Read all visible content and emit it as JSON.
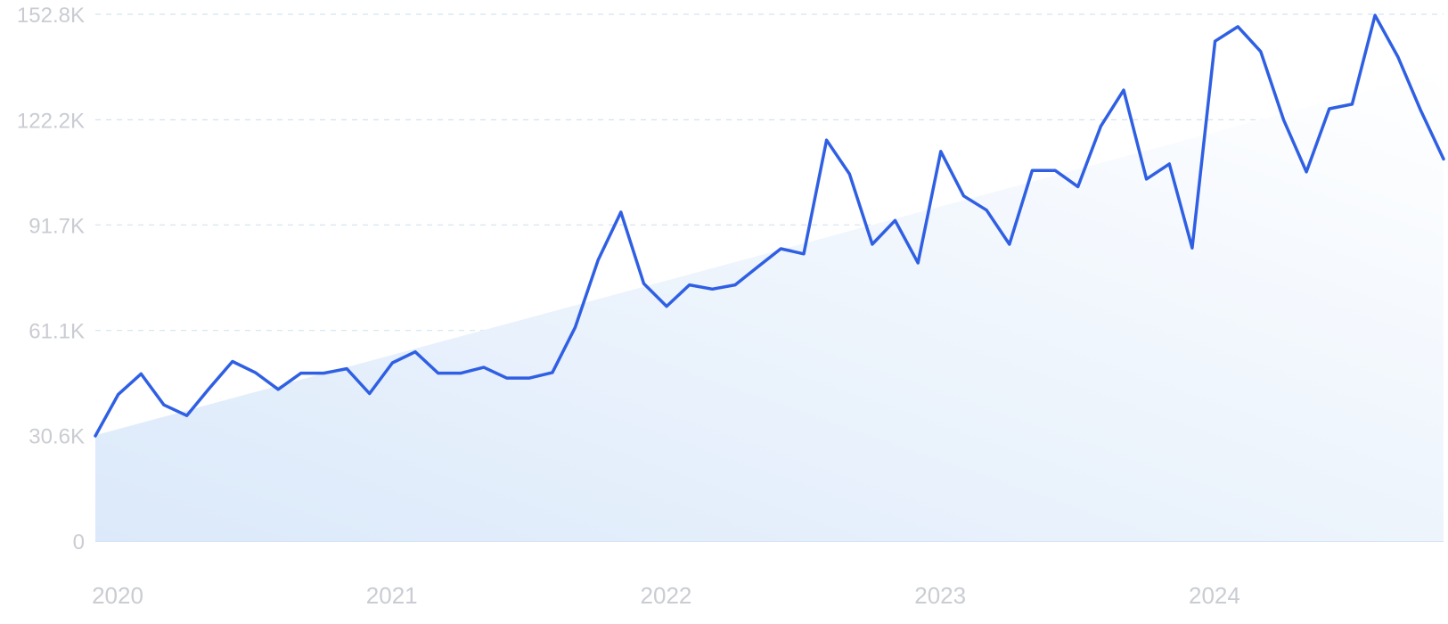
{
  "chart_data": {
    "type": "line",
    "title": "",
    "xlabel": "",
    "ylabel": "",
    "y_tick_labels": [
      "0",
      "30.6K",
      "61.1K",
      "91.7K",
      "122.2K",
      "152.8K"
    ],
    "y_tick_values": [
      0,
      30600,
      61100,
      91700,
      122200,
      152800
    ],
    "ylim": [
      0,
      152800
    ],
    "x_tick_labels": [
      "2020",
      "2021",
      "2022",
      "2023",
      "2024"
    ],
    "x_tick_dates": [
      "2020-01",
      "2021-01",
      "2022-01",
      "2023-01",
      "2024-01"
    ],
    "xlim": [
      "2020-01",
      "2024-12"
    ],
    "grid": true,
    "colors": {
      "line": "#2f5fe3",
      "area_start": "#dbe9fa",
      "area_end": "#ffffff",
      "grid": "#d4e3ee",
      "tick_text": "#c9ccd2"
    },
    "series": [
      {
        "x": [
          "2020-01",
          "2020-02",
          "2020-03",
          "2020-04",
          "2020-05",
          "2020-06",
          "2020-07",
          "2020-08",
          "2020-09",
          "2020-10",
          "2020-11",
          "2020-12",
          "2021-01",
          "2021-02",
          "2021-03",
          "2021-04",
          "2021-05",
          "2021-06",
          "2021-07",
          "2021-08",
          "2021-09",
          "2021-10",
          "2021-11",
          "2021-12",
          "2022-01",
          "2022-02",
          "2022-03",
          "2022-04",
          "2022-05",
          "2022-06",
          "2022-07",
          "2022-08",
          "2022-09",
          "2022-10",
          "2022-11",
          "2022-12",
          "2023-01",
          "2023-02",
          "2023-03",
          "2023-04",
          "2023-05",
          "2023-06",
          "2023-07",
          "2023-08",
          "2023-09",
          "2023-10",
          "2023-11",
          "2023-12",
          "2024-01",
          "2024-02",
          "2024-03",
          "2024-04",
          "2024-05",
          "2024-06",
          "2024-07",
          "2024-08",
          "2024-09",
          "2024-10",
          "2024-11",
          "2024-12"
        ],
        "values": [
          30500,
          42500,
          48500,
          39500,
          36400,
          44400,
          52100,
          48900,
          44000,
          48700,
          48700,
          50000,
          42800,
          51700,
          54900,
          48700,
          48700,
          50400,
          47300,
          47300,
          48900,
          62000,
          81500,
          95400,
          74700,
          68100,
          74300,
          73100,
          74300,
          79600,
          84800,
          83300,
          116300,
          106500,
          86100,
          93000,
          80700,
          113000,
          100100,
          96000,
          86100,
          107500,
          107500,
          102800,
          120300,
          130800,
          105000,
          109400,
          85000,
          145000,
          149200,
          142000,
          122200,
          107100,
          125400,
          126700,
          152500,
          140500,
          124900,
          110800
        ]
      }
    ]
  }
}
